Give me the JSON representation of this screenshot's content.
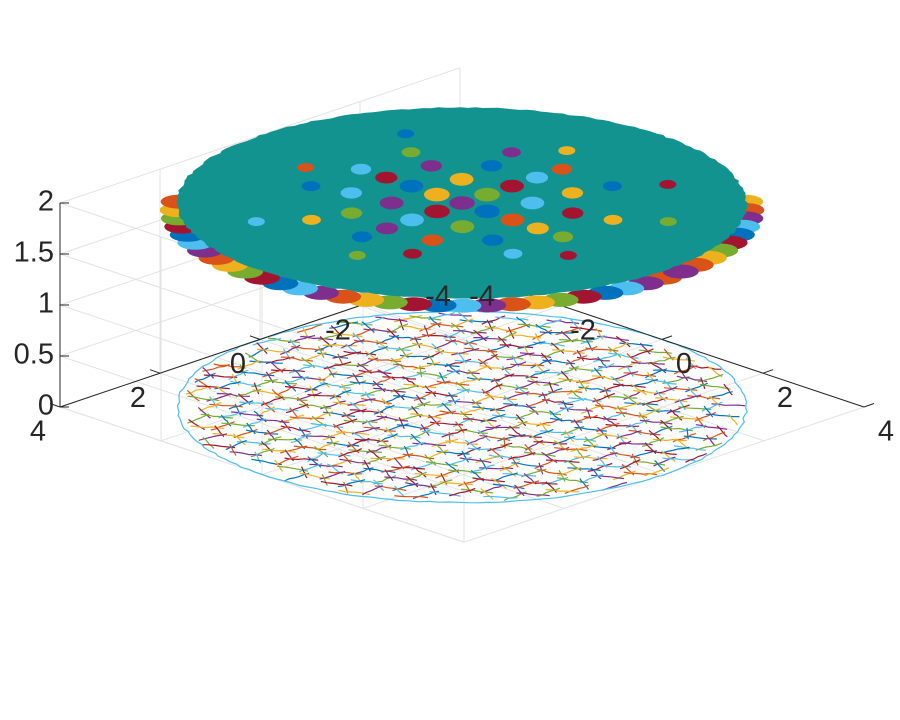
{
  "chart_data": {
    "type": "surface3d",
    "title": "",
    "xlabel": "",
    "ylabel": "",
    "zlabel": "",
    "xlim": [
      -4,
      4
    ],
    "ylim": [
      -4,
      4
    ],
    "zlim": [
      0,
      2
    ],
    "grid": true,
    "x_ticks": [
      "-4",
      "-2",
      "0",
      "2",
      "4"
    ],
    "y_ticks": [
      "-4",
      "-2",
      "0",
      "2",
      "4"
    ],
    "z_ticks": [
      "0",
      "0.5",
      "1",
      "1.5",
      "2"
    ],
    "disk_radius": 4,
    "top_surface": {
      "z": 2,
      "base_color": "#12938f",
      "cells": [
        {
          "x": 0.0,
          "y": 0.0,
          "r": 0.3,
          "color": "#7e2f8e"
        },
        {
          "x": 0.5,
          "y": 0.0,
          "r": 0.3,
          "color": "#0072bd"
        },
        {
          "x": 0.0,
          "y": 0.5,
          "r": 0.3,
          "color": "#a2142f"
        },
        {
          "x": -0.5,
          "y": 0.0,
          "r": 0.3,
          "color": "#edb120"
        },
        {
          "x": 0.0,
          "y": -0.5,
          "r": 0.3,
          "color": "#77ac30"
        },
        {
          "x": 1.0,
          "y": 0.0,
          "r": 0.28,
          "color": "#d95319"
        },
        {
          "x": 0.0,
          "y": 1.0,
          "r": 0.28,
          "color": "#4dbeee"
        },
        {
          "x": -1.0,
          "y": 0.0,
          "r": 0.28,
          "color": "#0072bd"
        },
        {
          "x": 0.0,
          "y": -1.0,
          "r": 0.28,
          "color": "#a2142f"
        },
        {
          "x": 0.7,
          "y": 0.7,
          "r": 0.28,
          "color": "#77ac30"
        },
        {
          "x": -0.7,
          "y": 0.7,
          "r": 0.28,
          "color": "#7e2f8e"
        },
        {
          "x": -0.7,
          "y": -0.7,
          "r": 0.28,
          "color": "#edb120"
        },
        {
          "x": 0.7,
          "y": -0.7,
          "r": 0.28,
          "color": "#4dbeee"
        },
        {
          "x": 1.5,
          "y": 0.0,
          "r": 0.26,
          "color": "#edb120"
        },
        {
          "x": 0.0,
          "y": 1.5,
          "r": 0.26,
          "color": "#7e2f8e"
        },
        {
          "x": -1.5,
          "y": 0.0,
          "r": 0.26,
          "color": "#a2142f"
        },
        {
          "x": 0.0,
          "y": -1.5,
          "r": 0.26,
          "color": "#4dbeee"
        },
        {
          "x": 1.4,
          "y": 0.8,
          "r": 0.25,
          "color": "#0072bd"
        },
        {
          "x": 0.8,
          "y": 1.4,
          "r": 0.25,
          "color": "#d95319"
        },
        {
          "x": -0.8,
          "y": 1.4,
          "r": 0.25,
          "color": "#77ac30"
        },
        {
          "x": -1.4,
          "y": 0.8,
          "r": 0.25,
          "color": "#4dbeee"
        },
        {
          "x": -1.4,
          "y": -0.8,
          "r": 0.25,
          "color": "#7e2f8e"
        },
        {
          "x": -0.8,
          "y": -1.4,
          "r": 0.25,
          "color": "#0072bd"
        },
        {
          "x": 0.8,
          "y": -1.4,
          "r": 0.25,
          "color": "#edb120"
        },
        {
          "x": 1.4,
          "y": -0.8,
          "r": 0.25,
          "color": "#a2142f"
        },
        {
          "x": 2.0,
          "y": 0.0,
          "r": 0.24,
          "color": "#77ac30"
        },
        {
          "x": 0.0,
          "y": 2.0,
          "r": 0.24,
          "color": "#0072bd"
        },
        {
          "x": -2.0,
          "y": 0.0,
          "r": 0.24,
          "color": "#4dbeee"
        },
        {
          "x": 0.0,
          "y": -2.0,
          "r": 0.24,
          "color": "#d95319"
        },
        {
          "x": 2.0,
          "y": 1.0,
          "r": 0.22,
          "color": "#4dbeee"
        },
        {
          "x": 1.0,
          "y": 2.0,
          "r": 0.22,
          "color": "#a2142f"
        },
        {
          "x": -1.0,
          "y": 2.0,
          "r": 0.22,
          "color": "#edb120"
        },
        {
          "x": -2.0,
          "y": 1.0,
          "r": 0.22,
          "color": "#0072bd"
        },
        {
          "x": -2.0,
          "y": -1.0,
          "r": 0.22,
          "color": "#77ac30"
        },
        {
          "x": -1.0,
          "y": -2.0,
          "r": 0.22,
          "color": "#7e2f8e"
        },
        {
          "x": 1.0,
          "y": -2.0,
          "r": 0.22,
          "color": "#0072bd"
        },
        {
          "x": 2.0,
          "y": -1.0,
          "r": 0.22,
          "color": "#edb120"
        },
        {
          "x": 2.6,
          "y": 0.5,
          "r": 0.2,
          "color": "#a2142f"
        },
        {
          "x": 0.5,
          "y": 2.6,
          "r": 0.2,
          "color": "#77ac30"
        },
        {
          "x": -2.6,
          "y": 0.5,
          "r": 0.2,
          "color": "#d95319"
        },
        {
          "x": -0.5,
          "y": -2.6,
          "r": 0.2,
          "color": "#edb120"
        },
        {
          "x": 2.6,
          "y": -1.5,
          "r": 0.2,
          "color": "#77ac30"
        },
        {
          "x": -1.5,
          "y": 2.6,
          "r": 0.2,
          "color": "#4dbeee"
        },
        {
          "x": -2.6,
          "y": -1.5,
          "r": 0.2,
          "color": "#0072bd"
        },
        {
          "x": 1.5,
          "y": -2.6,
          "r": 0.2,
          "color": "#a2142f"
        }
      ],
      "rim_colors": [
        "#d95319",
        "#7e2f8e",
        "#4dbeee",
        "#0072bd",
        "#a2142f",
        "#77ac30",
        "#edb120"
      ]
    },
    "bottom_contours": {
      "z": 0,
      "colors": [
        "#0072bd",
        "#d95319",
        "#edb120",
        "#7e2f8e",
        "#77ac30",
        "#4dbeee",
        "#a2142f"
      ]
    }
  }
}
